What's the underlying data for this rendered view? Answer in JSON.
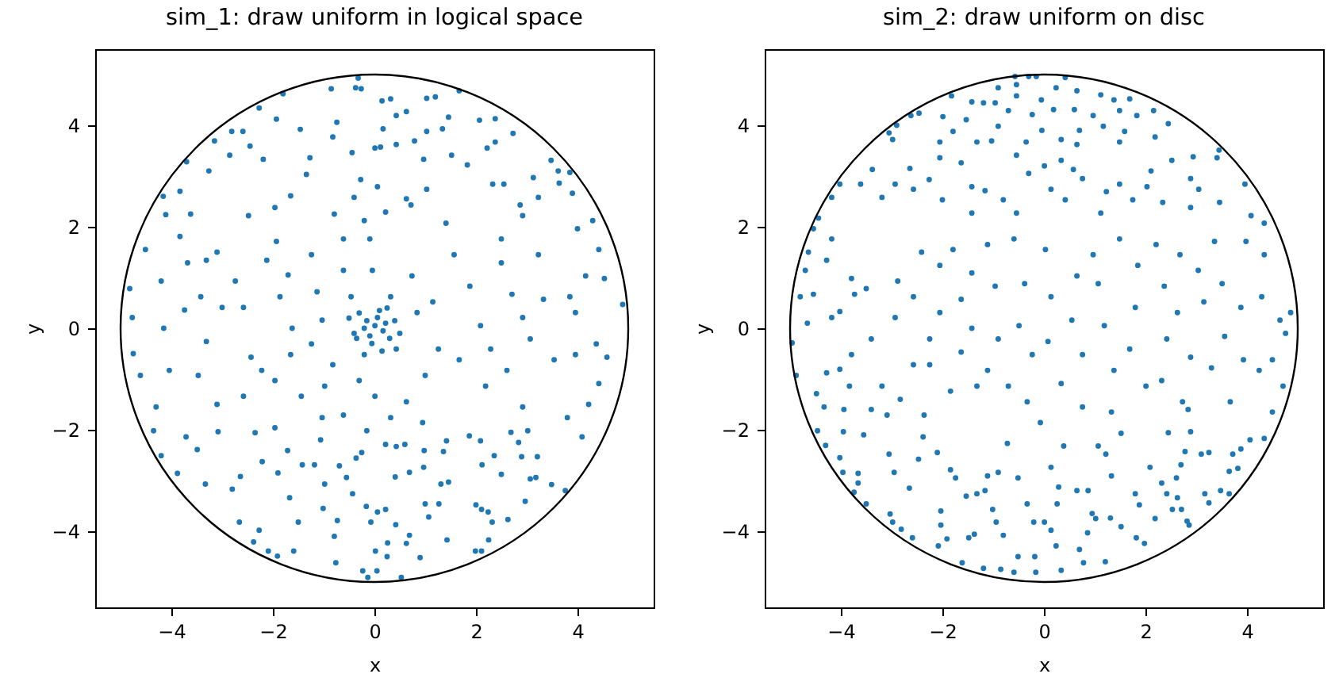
{
  "chart_data": [
    {
      "type": "scatter",
      "title": "sim_1: draw uniform in logical space",
      "xlabel": "x",
      "ylabel": "y",
      "xlim": [
        -5.5,
        5.5
      ],
      "ylim": [
        -5.5,
        5.5
      ],
      "xticks": [
        -4,
        -2,
        0,
        2,
        4
      ],
      "yticks": [
        -4,
        -2,
        0,
        2,
        4
      ],
      "grid": false,
      "color": "#1f77b4",
      "marker": "circle",
      "x": [
        -0.32,
        -0.37,
        -0.26,
        -0.85,
        -1.8,
        -2.27,
        -1.93,
        -3.15,
        -3.7,
        -4.16,
        -3.83,
        -3.26,
        -2.81,
        -2.59,
        -2.45,
        -2.19,
        -2.85,
        -1.46,
        -1.27,
        -0.82,
        -0.74,
        -0.44,
        -0.27,
        0.06,
        0.01,
        0.12,
        0.43,
        0.17,
        0.43,
        0.15,
        0.32,
        1.03,
        1.2,
        1.67,
        0.63,
        0.79,
        0.97,
        1.03,
        1.34,
        1.52,
        1.46,
        2.07,
        2.38,
        2.73,
        2.38,
        2.22,
        1.83,
        2.55,
        3.13,
        3.48,
        3.62,
        3.85,
        3.64,
        3.9,
        4.3,
        4.0,
        3.23,
        2.87,
        2.33,
        1.03,
        0.63,
        0.72,
        0.22,
        -0.4,
        -0.79,
        -1.34,
        -1.65,
        -1.96,
        -2.48,
        -3.62,
        -4.11,
        -0.2,
        1.41,
        2.92,
        -4.82,
        -4.77,
        -4.75,
        -4.51,
        -3.83,
        -4.2,
        -4.15,
        -4.61,
        -4.3,
        -4.04,
        -3.68,
        -3.31,
        -3.1,
        -3.42,
        -3.74,
        -3.0,
        -3.31,
        -3.47,
        -3.1,
        -2.74,
        -2.58,
        -2.43,
        -2.22,
        -2.58,
        -2.12,
        -1.93,
        -1.7,
        -1.86,
        -1.62,
        -1.65,
        -1.96,
        -1.44,
        -1.24,
        -1.13,
        -1.03,
        -1.24,
        -0.82,
        -0.98,
        -1.03,
        -0.61,
        -0.61,
        -0.46,
        -0.4,
        -0.2,
        -0.3,
        -0.09,
        -0.04,
        0.01,
        -0.15,
        0.17,
        0.06,
        -0.09,
        0.22,
        -0.2,
        0.32,
        0.43,
        0.74,
        0.84,
        1.15,
        1.26,
        1.0,
        0.63,
        0.01,
        0.32,
        1.57,
        1.88,
        2.09,
        1.67,
        2.29,
        2.19,
        2.5,
        2.71,
        2.5,
        2.92,
        3.07,
        2.61,
        2.92,
        3.23,
        3.33,
        3.85,
        3.96,
        3.54,
        3.96,
        4.16,
        4.42,
        4.53,
        4.89,
        4.37,
        4.58,
        4.42,
        4.22,
        3.8,
        0.95,
        -0.61,
        -1.96,
        0.3,
        -0.3,
        0.1,
        -0.05,
        0.4,
        -0.35,
        0.25,
        0.5,
        -0.5,
        0.15,
        -4.35,
        -4.2,
        -3.88,
        -3.49,
        -3.33,
        -3.71,
        -3.08,
        -2.8,
        -2.66,
        -2.64,
        -2.21,
        -2.35,
        -2.38,
        -2.27,
        -2.09,
        -1.91,
        -1.9,
        -1.71,
        -1.67,
        -1.59,
        -1.5,
        -1.42,
        -1.18,
        -1.06,
        -0.98,
        -1.01,
        -0.73,
        -0.79,
        -0.76,
        -0.55,
        -0.69,
        -0.43,
        -0.36,
        -0.25,
        -0.15,
        -0.16,
        -0.07,
        -0.23,
        -0.13,
        0.02,
        0.05,
        0.06,
        0.22,
        0.22,
        0.26,
        0.25,
        0.42,
        0.41,
        0.43,
        0.53,
        0.6,
        0.63,
        0.69,
        0.69,
        0.97,
        0.98,
        0.9,
        1.0,
        1.07,
        1.31,
        1.46,
        1.43,
        1.27,
        1.42,
        1.36,
        1.87,
        2.09,
        2.11,
        2.0,
        2.24,
        2.32,
        2.25,
        2.11,
        1.99,
        2.12,
        2.36,
        2.5,
        2.63,
        2.69,
        2.84,
        2.9,
        2.97,
        3.07,
        3.21,
        3.18,
        3.49,
        3.76,
        4.09,
        3.02
      ],
      "values": [
        4.93,
        4.74,
        4.72,
        4.72,
        4.62,
        4.34,
        4.12,
        3.69,
        3.28,
        2.6,
        2.7,
        3.1,
        3.88,
        3.88,
        3.59,
        3.33,
        3.41,
        3.92,
        3.36,
        3.77,
        4.06,
        3.46,
        2.93,
        2.79,
        3.55,
        3.57,
        3.62,
        3.93,
        4.19,
        4.48,
        4.52,
        4.53,
        4.56,
        4.68,
        4.27,
        3.69,
        3.33,
        3.88,
        3.93,
        3.41,
        4.16,
        4.1,
        4.13,
        3.84,
        3.67,
        3.55,
        3.22,
        2.84,
        2.97,
        3.31,
        3.1,
        3.07,
        2.86,
        2.66,
        2.12,
        1.96,
        2.58,
        2.43,
        2.84,
        2.74,
        2.55,
        2.43,
        2.29,
        2.58,
        2.25,
        3.03,
        2.61,
        2.38,
        2.22,
        2.25,
        2.24,
        2.12,
        2.07,
        2.22,
        0.78,
        0.21,
        -0.5,
        1.55,
        1.81,
        0.93,
        0,
        -0.93,
        -1.55,
        -0.83,
        1.29,
        1.34,
        1.5,
        0.62,
        0.36,
        0.41,
        -0.26,
        -0.93,
        -1.5,
        0.93,
        0.41,
        -0.57,
        -0.83,
        -1.34,
        1.34,
        1.71,
        1.05,
        0.62,
        0,
        -0.52,
        -1.03,
        -1.34,
        1.45,
        0.72,
        0.16,
        -0.31,
        -0.72,
        -1.14,
        -1.76,
        1.76,
        1.14,
        0.62,
        -0.1,
        -0.52,
        -1.03,
        1.76,
        1.14,
        0.05,
        0.15,
        -0.05,
        0.21,
        -0.15,
        0.1,
        0,
        0.62,
        -0.41,
        1.03,
        0.31,
        0.52,
        -0.41,
        -0.93,
        -1.45,
        -1.34,
        -1.76,
        1.45,
        0.83,
        0.05,
        -0.62,
        -0.41,
        -1.14,
        1.76,
        0.67,
        1.29,
        0.21,
        -0.21,
        -0.83,
        -1.55,
        1.45,
        0.57,
        0.62,
        0.31,
        -0.62,
        -0.52,
        1.03,
        1.55,
        0.98,
        0.47,
        -0.31,
        -0.57,
        -1.09,
        -1.5,
        -1.76,
        -1.86,
        -1.71,
        -1.96,
        -0.2,
        0.3,
        0.35,
        -0.3,
        0.15,
        -0.2,
        0.4,
        -0.1,
        0.2,
        -0.45,
        -2.02,
        -2.51,
        -2.86,
        -2.39,
        -3.07,
        -2.14,
        -2.04,
        -3.17,
        -3.82,
        -2.92,
        -2.63,
        -2.06,
        -4.21,
        -3.98,
        -4.39,
        -4.49,
        -2.85,
        -2.41,
        -3.34,
        -4.39,
        -3.82,
        -2.69,
        -2.69,
        -2.2,
        -3.07,
        -3.55,
        -3.79,
        -4.1,
        -4.62,
        -2.94,
        -2.71,
        -3.26,
        -2.56,
        -2.45,
        -2.02,
        -3.51,
        -3.82,
        -4.78,
        -4.91,
        -4.39,
        -4.78,
        -3.62,
        -2.29,
        -3.57,
        -4.23,
        -4.5,
        -3.87,
        -2.93,
        -2.33,
        -4.91,
        -2.29,
        -4.24,
        -4.08,
        -2.84,
        -2.74,
        -2.41,
        -4.52,
        -3.46,
        -3.72,
        -3.07,
        -3.03,
        -4.17,
        -3.46,
        -2.22,
        -2.43,
        -2.12,
        -2.22,
        -3.57,
        -3.48,
        -3.62,
        -3.82,
        -4.17,
        -4.39,
        -4.39,
        -2.69,
        -2.51,
        -2.88,
        -3.77,
        -2.05,
        -2.25,
        -2.53,
        -3.41,
        -2.97,
        -2.53,
        -2.94,
        -3.08,
        -3.2,
        -2.14,
        -2.02
      ]
    },
    {
      "type": "scatter",
      "title": "sim_2: draw uniform on disc",
      "xlabel": "x",
      "ylabel": "y",
      "xlim": [
        -5.5,
        5.5
      ],
      "ylim": [
        -5.5,
        5.5
      ],
      "xticks": [
        -4,
        -2,
        0,
        2,
        4
      ],
      "yticks": [
        -4,
        -2,
        0,
        2,
        4
      ],
      "grid": false,
      "color": "#1f77b4",
      "marker": "circle",
      "x": [
        -0.57,
        -0.3,
        -0.15,
        0.42,
        -0.9,
        -0.54,
        0.24,
        0.65,
        1.12,
        1.38,
        1.69,
        -1.82,
        -1.42,
        -1.19,
        -0.96,
        -0.54,
        -0.7,
        -0.05,
        -0.23,
        0.19,
        0.6,
        0.97,
        1.49,
        1.83,
        2.16,
        2.45,
        2.19,
        1.59,
        1.17,
        1.49,
        0.7,
        0.65,
        0.34,
        -0.04,
        -0.35,
        -0.54,
        -0.9,
        -1.03,
        -1.32,
        -1.53,
        -1.79,
        -2.05,
        -1.99,
        -2.46,
        -2.62,
        -2.9,
        -2.98,
        -3.05,
        -3.38,
        -3.61,
        -4.02,
        -4.18,
        -4.44,
        -4.54,
        -3.19,
        -2.93,
        -2.64,
        -2.57,
        -2.26,
        -2.05,
        -2.0,
        -1.63,
        -1.42,
        -1.16,
        -1.42,
        -0.8,
        -0.54,
        -0.3,
        0.01,
        0.34,
        0.58,
        0.14,
        0.42,
        0.76,
        1.23,
        1.49,
        1.75,
        2.03,
        2.11,
        2.52,
        2.94,
        2.89,
        3.05,
        3.41,
        3.45,
        3.96,
        3.46,
        2.89,
        4.08,
        4.34,
        2.34,
        1.12,
        -4.96,
        -4.88,
        -4.8,
        -4.7,
        -4.64,
        -4.54,
        -4.66,
        -4.48,
        -4.33,
        -4.28,
        -4.18,
        -4.18,
        -4.02,
        -4.28,
        -4.02,
        -3.79,
        -3.73,
        -3.79,
        -3.83,
        -3.94,
        -3.5,
        -3.4,
        -3.4,
        -3.19,
        -3.09,
        -2.93,
        -2.88,
        -2.57,
        -2.57,
        -2.83,
        -2.41,
        -2.36,
        -2.25,
        -2.05,
        -2.05,
        -2.25,
        -1.79,
        -1.63,
        -1.84,
        -1.42,
        -1.42,
        -1.63,
        -1.11,
        -0.96,
        -0.9,
        -1.11,
        -1.32,
        -0.7,
        -0.59,
        -0.38,
        -0.49,
        -0.23,
        -0.33,
        -0.07,
        0.03,
        0.14,
        0.08,
        0.34,
        0.65,
        0.55,
        0.76,
        0.76,
        0.97,
        1.07,
        1.19,
        1.38,
        1.33,
        1.49,
        1.8,
        1.85,
        1.69,
        2.01,
        2.21,
        2.37,
        2.42,
        2.32,
        2.63,
        2.68,
        2.73,
        2.84,
        2.89,
        3.04,
        3.15,
        3.36,
        3.3,
        3.56,
        3.51,
        3.67,
        3.88,
        3.98,
        3.93,
        4.29,
        4.34,
        4.5,
        4.65,
        4.76,
        4.71,
        4.86,
        4.5,
        4.24,
        -4.46,
        -4.3,
        -4.02,
        -3.96,
        -3.66,
        -3.74,
        -3.5,
        -3.66,
        -3.95,
        -3.55,
        -3.05,
        -2.95,
        -3.03,
        -2.98,
        -2.81,
        -2.59,
        -2.65,
        -2.47,
        -2.38,
        -2.08,
        -2.03,
        -2.03,
        -1.91,
        -2.1,
        -1.84,
        -1.74,
        -1.61,
        -1.48,
        -1.37,
        -1.53,
        -1.32,
        -1.16,
        -1.19,
        -1.01,
        -0.94,
        -1.11,
        -0.9,
        -0.85,
        -0.8,
        -0.72,
        -0.51,
        -0.59,
        -0.51,
        -0.33,
        -0.2,
        -0.18,
        -0.16,
        0.01,
        0.14,
        0.24,
        0.34,
        0.14,
        0.29,
        0.26,
        0.39,
        0.65,
        0.7,
        0.78,
        0.86,
        0.87,
        0.95,
        1.02,
        1.21,
        1.07,
        1.22,
        1.33,
        1.31,
        1.52,
        1.52,
        1.8,
        1.82,
        1.88,
        1.98,
        2.09,
        2.19,
        2.32,
        2.42,
        2.53,
        2.61,
        2.7,
        2.63,
        2.78,
        2.82,
        2.86,
        2.71,
        3.17,
        3.25,
        3.1,
        3.25,
        3.48,
        3.65,
        3.72,
        3.88,
        4.06,
        4.34,
        2.89,
        2.45,
        3.82,
        3.65
      ],
      "values": [
        4.96,
        4.96,
        4.96,
        4.94,
        4.74,
        4.8,
        4.74,
        4.68,
        4.6,
        4.5,
        4.52,
        4.58,
        4.46,
        4.44,
        4.44,
        4.58,
        4.29,
        4.5,
        4.21,
        4.31,
        4.31,
        4.19,
        4.29,
        4.19,
        4.29,
        4.03,
        3.77,
        3.88,
        3.98,
        3.67,
        3.9,
        3.62,
        3.72,
        3.9,
        3.67,
        3.41,
        3.98,
        3.69,
        3.67,
        4.11,
        3.88,
        3.67,
        4.17,
        4.24,
        4.19,
        4.0,
        3.72,
        3.85,
        3.13,
        2.84,
        2.84,
        2.58,
        2.17,
        1.96,
        2.58,
        2.84,
        3.15,
        2.74,
        2.93,
        3.36,
        2.53,
        3.26,
        2.79,
        2.71,
        2.27,
        2.53,
        2.27,
        3.05,
        3.2,
        3.31,
        3.13,
        2.74,
        2.53,
        2.95,
        2.69,
        2.84,
        2.53,
        2.79,
        3.1,
        3.31,
        3.38,
        2.95,
        2.74,
        3.36,
        3.51,
        2.84,
        2.48,
        2.38,
        2.22,
        2.07,
        2.48,
        2.27,
        -0.29,
        -0.93,
        0.62,
        1.14,
        1.5,
        0.67,
        0.1,
        -1.29,
        -1.55,
        1.34,
        1.76,
        0.21,
        0.33,
        -0.88,
        -0.81,
        0.98,
        0.67,
        -0.52,
        -1.14,
        -1.6,
        0.78,
        -0.21,
        -1.6,
        -1.14,
        -1.71,
        0.21,
        0.93,
        0.62,
        -0.72,
        -1.4,
        1.5,
        -1.71,
        -0.21,
        0.31,
        1.24,
        -0.72,
        1.55,
        0.57,
        -1.24,
        0,
        1.09,
        -0.47,
        1.65,
        0.83,
        -0.21,
        -0.83,
        -1.14,
        -1.14,
        1.76,
        0.88,
        0.05,
        -0.52,
        -1.45,
        -1.86,
        1.55,
        0.62,
        -0.26,
        -1.09,
        1.03,
        0.16,
        -0.52,
        -1.55,
        1.45,
        0.88,
        0.05,
        -0.83,
        -1.65,
        1.76,
        0.41,
        1.24,
        -0.41,
        -1.14,
        1.65,
        0.83,
        -0.21,
        -1.03,
        0.31,
        1.45,
        -1.45,
        -1.6,
        -0.57,
        1.14,
        0.52,
        1.71,
        -0.78,
        -0.16,
        0.88,
        -1.45,
        0.41,
        1.71,
        -0.62,
        0.62,
        1.45,
        -1.65,
        0.16,
        -0.1,
        -1.14,
        0.31,
        -0.62,
        -0.83,
        -2.02,
        -2.31,
        -2.55,
        -2.84,
        -2.86,
        -3.23,
        -3.46,
        -3.05,
        -2.04,
        -2.1,
        -2.48,
        -2.84,
        -3.66,
        -3.82,
        -3.96,
        -4.13,
        -3.15,
        -2.58,
        -2.14,
        -4.29,
        -3.6,
        -3.88,
        -4.15,
        -2.45,
        -2.79,
        -2.95,
        -4.62,
        -4.13,
        -4.06,
        -3.31,
        -3.26,
        -3.2,
        -4.73,
        -3.57,
        -3.82,
        -2.91,
        -2.84,
        -4.75,
        -4.08,
        -2.27,
        -2.95,
        -4.81,
        -4.5,
        -3.46,
        -3.82,
        -4.5,
        -4.81,
        -3.82,
        -3.98,
        -4.29,
        -4.77,
        -2.74,
        -3.13,
        -3.46,
        -2.32,
        -3.2,
        -4.36,
        -4.62,
        -4.03,
        -3.2,
        -3.65,
        -3.75,
        -4.6,
        -2.32,
        -2.48,
        -2.91,
        -3.74,
        -3.91,
        -2.07,
        -3.26,
        -4.13,
        -3.48,
        -4.24,
        -2.74,
        -3.75,
        -3.05,
        -3.26,
        -3.57,
        -2.95,
        -2.69,
        -3.34,
        -2.43,
        -3.8,
        -3.88,
        -3.57,
        -3.26,
        -3.44,
        -2.48,
        -2.45,
        -3.2,
        -3.26,
        -2.48,
        -2.38,
        -2.2,
        -2.17,
        -2.04,
        -2.06,
        -2.76,
        -2.82
      ]
    }
  ]
}
